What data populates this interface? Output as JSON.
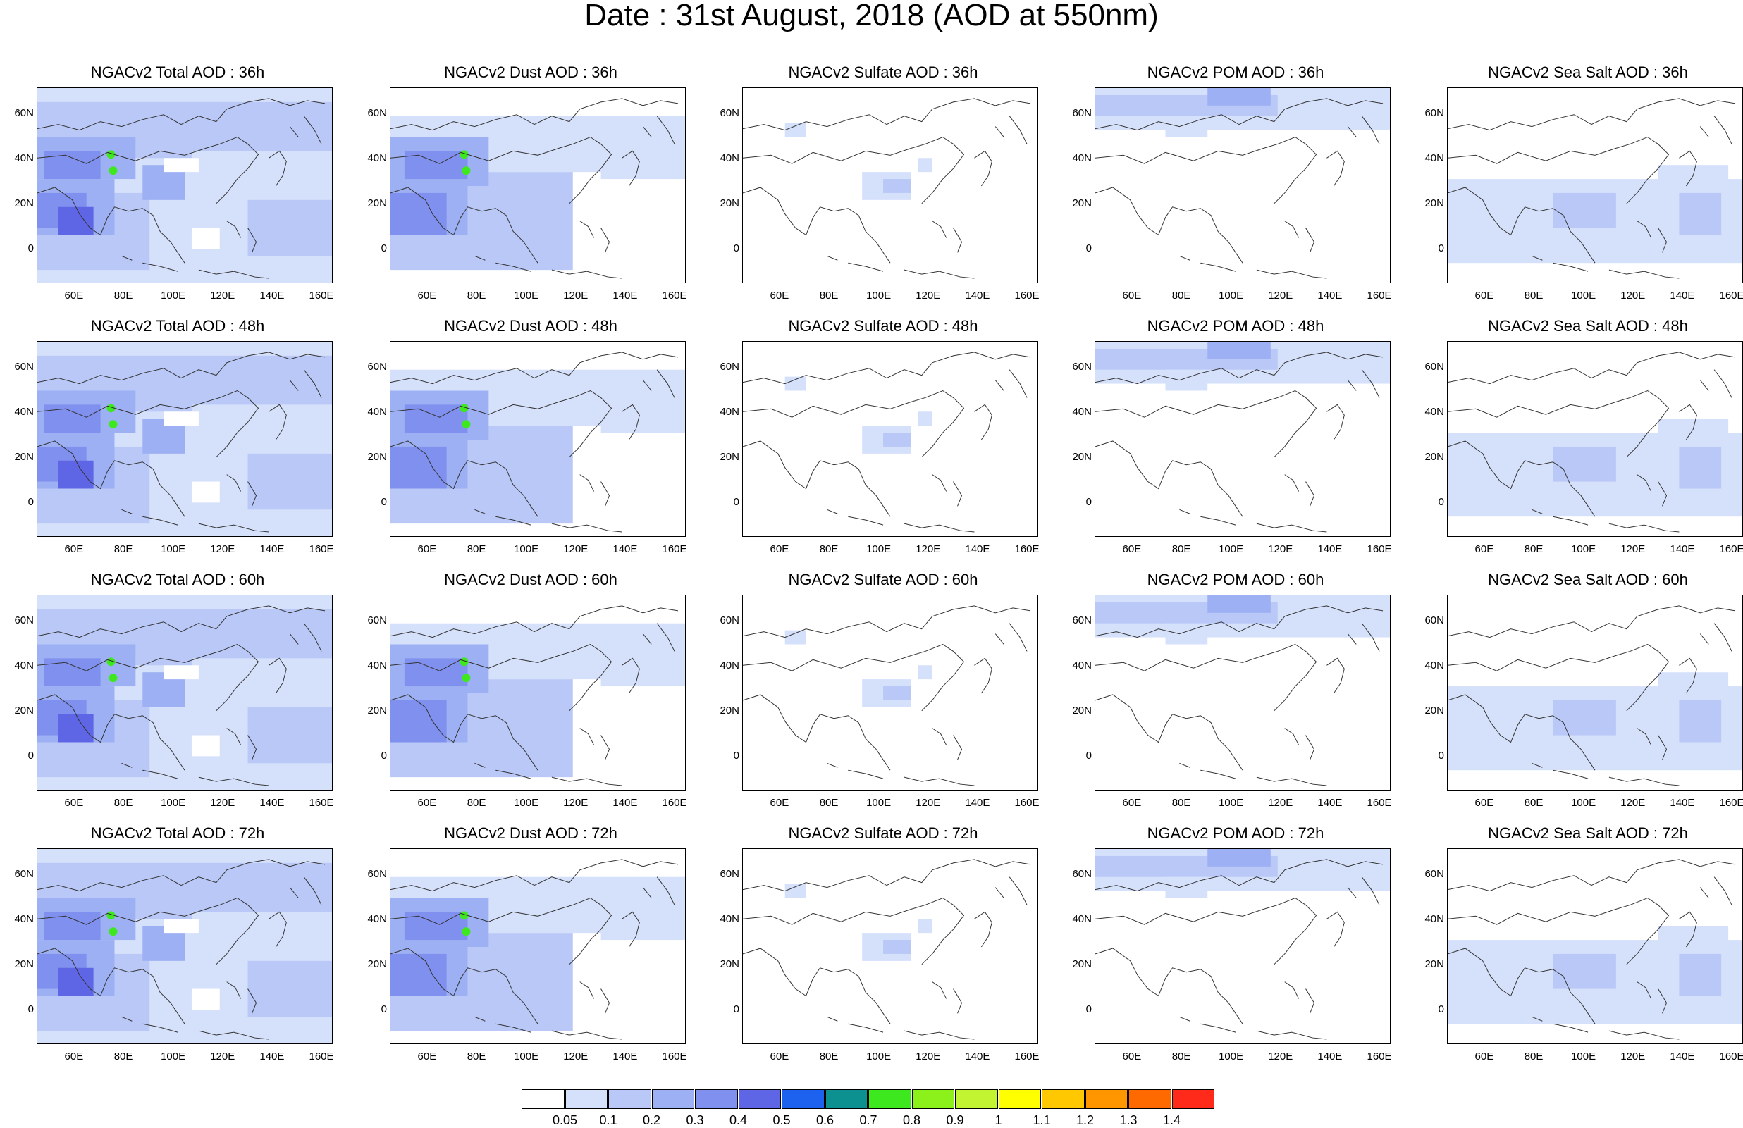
{
  "title": "Date : 31st August, 2018 (AOD at 550nm)",
  "y_ticks": [
    "60N",
    "40N",
    "20N",
    "0"
  ],
  "x_ticks": [
    "60E",
    "80E",
    "100E",
    "120E",
    "140E",
    "160E"
  ],
  "panels": [
    {
      "title": "NGACv2 Total AOD : 36h",
      "species": "total"
    },
    {
      "title": "NGACv2 Dust AOD : 36h",
      "species": "dust"
    },
    {
      "title": "NGACv2 Sulfate AOD : 36h",
      "species": "sulfate"
    },
    {
      "title": "NGACv2 POM AOD : 36h",
      "species": "pom"
    },
    {
      "title": "NGACv2 Sea Salt AOD : 36h",
      "species": "seasalt"
    },
    {
      "title": "NGACv2 Total AOD : 48h",
      "species": "total"
    },
    {
      "title": "NGACv2 Dust AOD : 48h",
      "species": "dust"
    },
    {
      "title": "NGACv2 Sulfate AOD : 48h",
      "species": "sulfate"
    },
    {
      "title": "NGACv2 POM AOD : 48h",
      "species": "pom"
    },
    {
      "title": "NGACv2 Sea Salt AOD : 48h",
      "species": "seasalt"
    },
    {
      "title": "NGACv2 Total AOD : 60h",
      "species": "total"
    },
    {
      "title": "NGACv2 Dust AOD : 60h",
      "species": "dust"
    },
    {
      "title": "NGACv2 Sulfate AOD : 60h",
      "species": "sulfate"
    },
    {
      "title": "NGACv2 POM AOD : 60h",
      "species": "pom"
    },
    {
      "title": "NGACv2 Sea Salt AOD : 60h",
      "species": "seasalt"
    },
    {
      "title": "NGACv2 Total AOD : 72h",
      "species": "total"
    },
    {
      "title": "NGACv2 Dust AOD : 72h",
      "species": "dust"
    },
    {
      "title": "NGACv2 Sulfate AOD : 72h",
      "species": "sulfate"
    },
    {
      "title": "NGACv2 POM AOD : 72h",
      "species": "pom"
    },
    {
      "title": "NGACv2 Sea Salt  AOD : 72h",
      "species": "seasalt"
    }
  ],
  "colorbar": {
    "labels": [
      "0.05",
      "0.1",
      "0.2",
      "0.3",
      "0.4",
      "0.5",
      "0.6",
      "0.7",
      "0.8",
      "0.9",
      "1",
      "1.1",
      "1.2",
      "1.3",
      "1.4"
    ],
    "colors": [
      "#ffffff",
      "#d5e0fb",
      "#b9c8f7",
      "#9db0f3",
      "#8090ee",
      "#5f66e6",
      "#1d62ee",
      "#0d9090",
      "#3ee81e",
      "#8cf01a",
      "#c2f432",
      "#ffff00",
      "#ffc800",
      "#ff9600",
      "#ff6a00",
      "#ff2a1a"
    ]
  }
}
